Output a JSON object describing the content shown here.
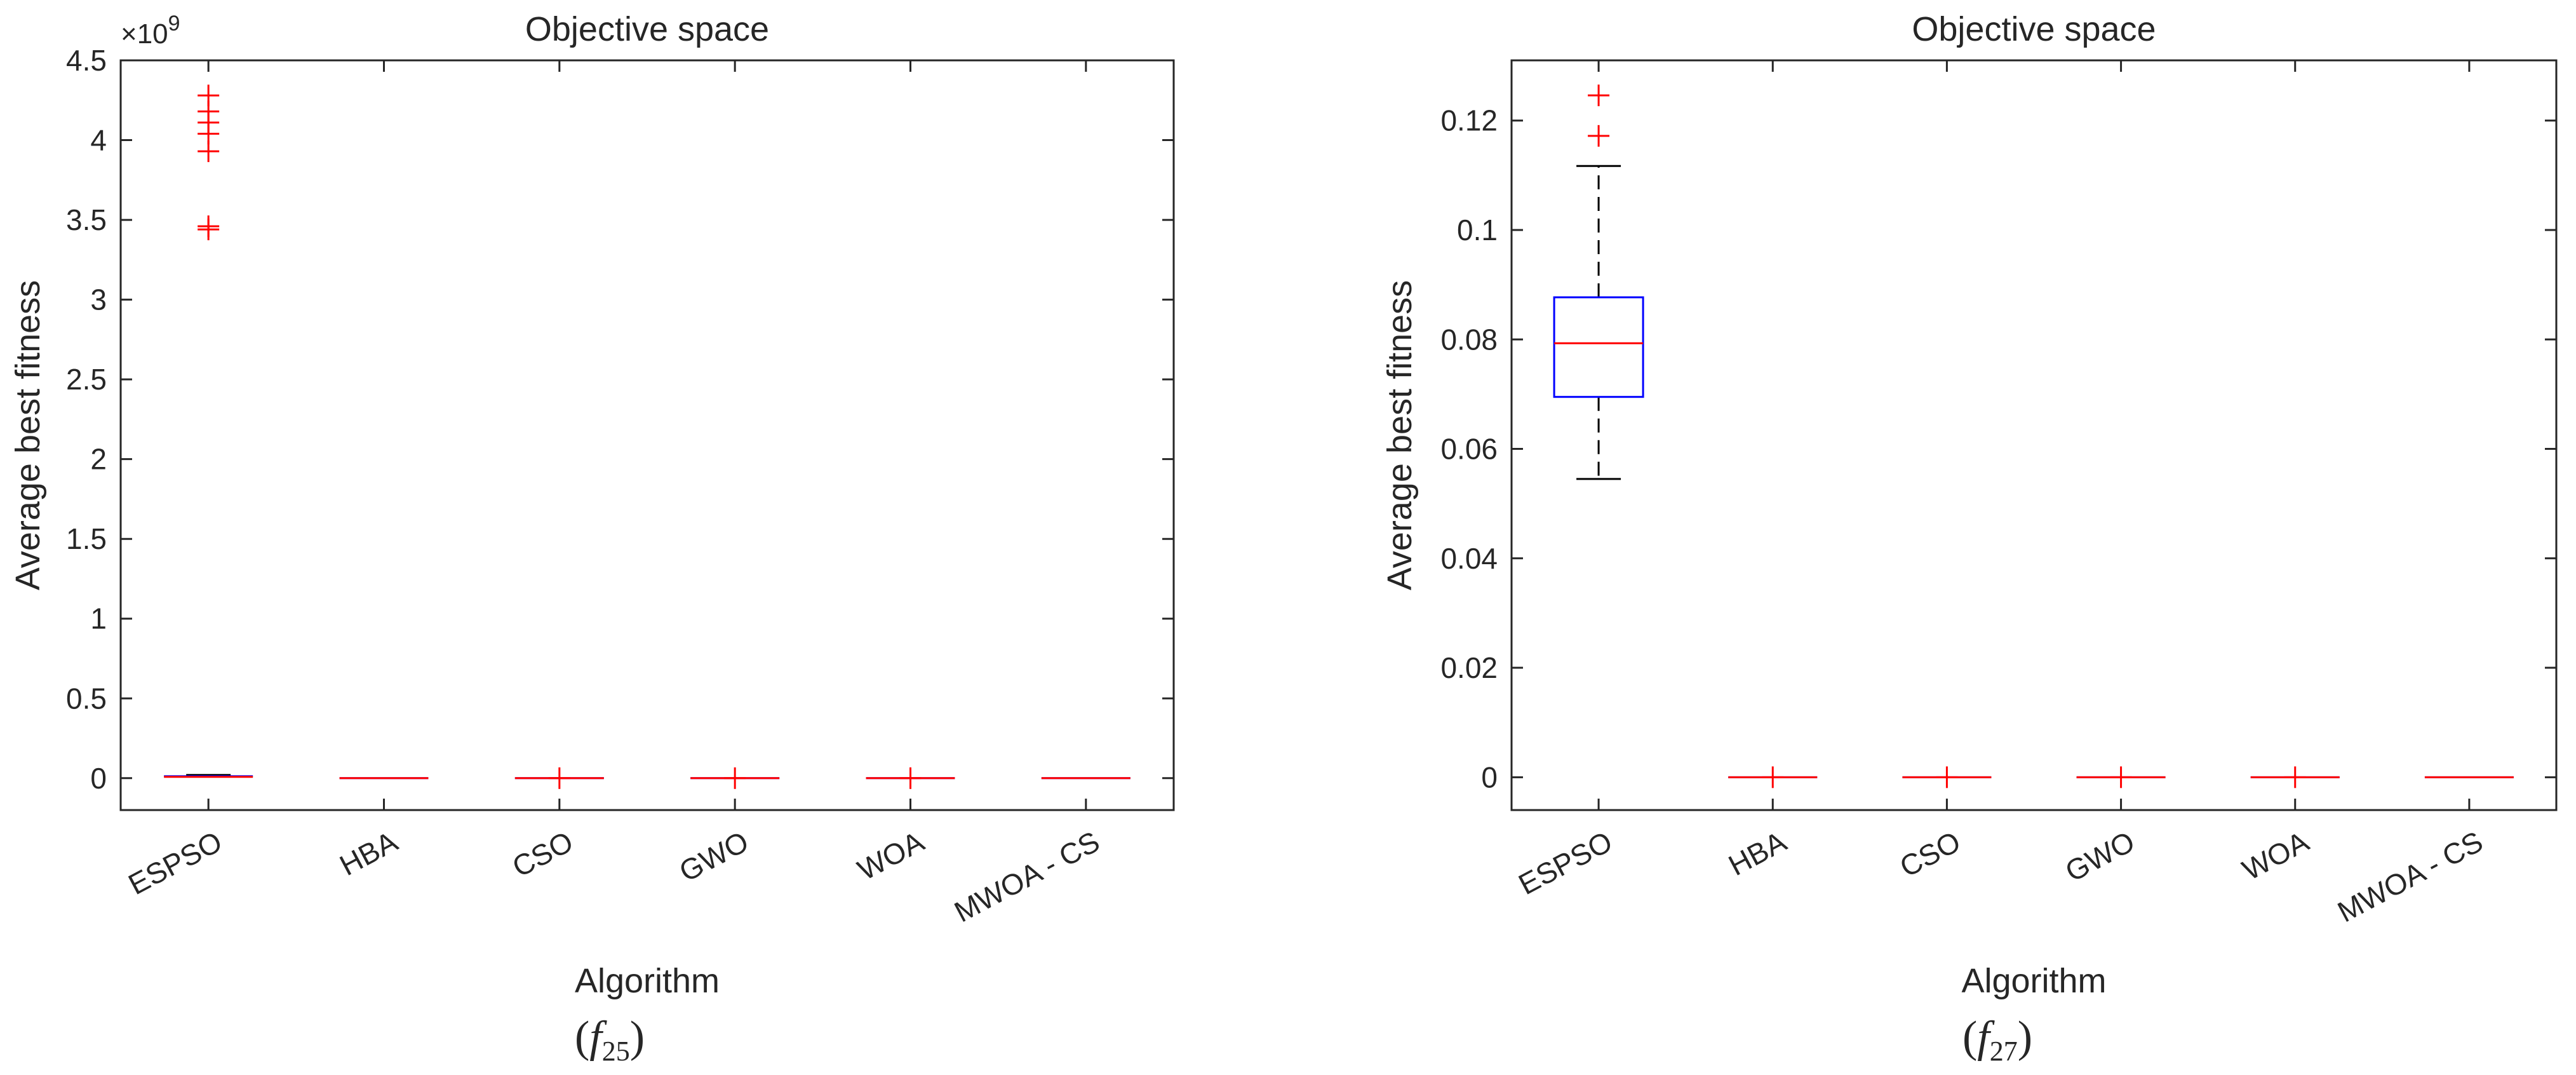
{
  "chart_data": [
    {
      "type": "box",
      "title": "Objective space",
      "xlabel": "Algorithm",
      "ylabel": "Average best fitness",
      "exponent_label": "×10",
      "exponent_power": "9",
      "caption_base": "f",
      "caption_sub": "25",
      "ylim": [
        -0.2,
        4.5
      ],
      "yticks": [
        0,
        0.5,
        1,
        1.5,
        2,
        2.5,
        3,
        3.5,
        4,
        4.5
      ],
      "ytick_labels": [
        "0",
        "0.5",
        "1",
        "1.5",
        "2",
        "2.5",
        "3",
        "3.5",
        "4",
        "4.5"
      ],
      "grid": false,
      "box_color": "#0000ff",
      "median_color": "#ff0000",
      "outlier_color": "#ff0000",
      "categories": [
        "ESPSO",
        "HBA",
        "CSO",
        "GWO",
        "WOA",
        "MWOA - CS"
      ],
      "boxes": [
        {
          "name": "ESPSO",
          "q1": 0.005,
          "median": 0.008,
          "q3": 0.012,
          "whisker_low": 0,
          "whisker_high": 0.02,
          "outliers": [
            3.44,
            3.46,
            3.93,
            4.04,
            4.11,
            4.18,
            4.28
          ]
        },
        {
          "name": "HBA",
          "q1": 0,
          "median": 0,
          "q3": 0,
          "whisker_low": 0,
          "whisker_high": 0,
          "outliers": []
        },
        {
          "name": "CSO",
          "q1": 0,
          "median": 0,
          "q3": 0,
          "whisker_low": 0,
          "whisker_high": 0,
          "outliers": [
            0
          ]
        },
        {
          "name": "GWO",
          "q1": 0,
          "median": 0,
          "q3": 0,
          "whisker_low": 0,
          "whisker_high": 0,
          "outliers": [
            0
          ]
        },
        {
          "name": "WOA",
          "q1": 0,
          "median": 0,
          "q3": 0,
          "whisker_low": 0,
          "whisker_high": 0,
          "outliers": [
            0
          ]
        },
        {
          "name": "MWOA - CS",
          "q1": 0,
          "median": 0,
          "q3": 0,
          "whisker_low": 0,
          "whisker_high": 0,
          "outliers": []
        }
      ]
    },
    {
      "type": "box",
      "title": "Objective space",
      "xlabel": "Algorithm",
      "ylabel": "Average best fitness",
      "exponent_label": "",
      "exponent_power": "",
      "caption_base": "f",
      "caption_sub": "27",
      "ylim": [
        -0.006,
        0.131
      ],
      "yticks": [
        0,
        0.02,
        0.04,
        0.06,
        0.08,
        0.1,
        0.12
      ],
      "ytick_labels": [
        "0",
        "0.02",
        "0.04",
        "0.06",
        "0.08",
        "0.1",
        "0.12"
      ],
      "grid": false,
      "box_color": "#0000ff",
      "median_color": "#ff0000",
      "outlier_color": "#ff0000",
      "categories": [
        "ESPSO",
        "HBA",
        "CSO",
        "GWO",
        "WOA",
        "MWOA - CS"
      ],
      "boxes": [
        {
          "name": "ESPSO",
          "q1": 0.0695,
          "median": 0.0793,
          "q3": 0.0877,
          "whisker_low": 0.0545,
          "whisker_high": 0.1117,
          "outliers": [
            0.1172,
            0.1246
          ]
        },
        {
          "name": "HBA",
          "q1": 0,
          "median": 0,
          "q3": 0,
          "whisker_low": 0,
          "whisker_high": 0,
          "outliers": [
            0
          ]
        },
        {
          "name": "CSO",
          "q1": 0,
          "median": 0,
          "q3": 0,
          "whisker_low": 0,
          "whisker_high": 0,
          "outliers": [
            0
          ]
        },
        {
          "name": "GWO",
          "q1": 0,
          "median": 0,
          "q3": 0,
          "whisker_low": 0,
          "whisker_high": 0,
          "outliers": [
            0
          ]
        },
        {
          "name": "WOA",
          "q1": 0,
          "median": 0,
          "q3": 0,
          "whisker_low": 0,
          "whisker_high": 0,
          "outliers": [
            0
          ]
        },
        {
          "name": "MWOA - CS",
          "q1": 0,
          "median": 0,
          "q3": 0,
          "whisker_low": 0,
          "whisker_high": 0,
          "outliers": []
        }
      ]
    }
  ]
}
